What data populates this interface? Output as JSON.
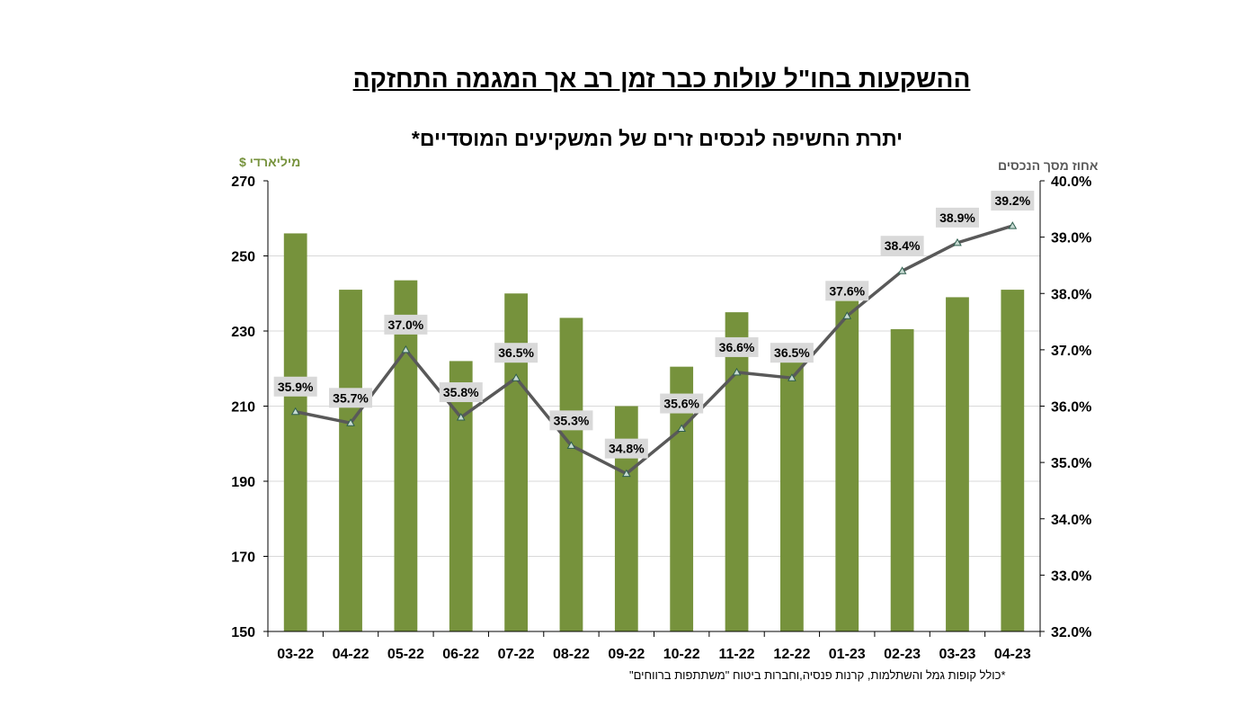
{
  "header": {
    "title": "ההשקעות בחו\"ל עולות כבר זמן רב אך המגמה התחזקה"
  },
  "chart_data": {
    "type": "bar+line",
    "title": "יתרת החשיפה לנכסים זרים של המשקיעים המוסדיים*",
    "ylabel": "מיליארדי $",
    "y2label": "אחוז מסך  הנכסים",
    "categories": [
      "03-22",
      "04-22",
      "05-22",
      "06-22",
      "07-22",
      "08-22",
      "09-22",
      "10-22",
      "11-22",
      "12-22",
      "01-23",
      "02-23",
      "03-23",
      "04-23"
    ],
    "series": [
      {
        "values": [
          256,
          241,
          243.5,
          222,
          240,
          233.5,
          210,
          220.5,
          235,
          222,
          238,
          230.5,
          239,
          241
        ],
        "axis": "left",
        "kind": "bar",
        "color": "#76923c"
      },
      {
        "values": [
          35.9,
          35.7,
          37.0,
          35.8,
          36.5,
          35.3,
          34.8,
          35.6,
          36.6,
          36.5,
          37.6,
          38.4,
          38.9,
          39.2
        ],
        "axis": "right",
        "kind": "line",
        "color": "#595959",
        "labels": [
          "35.9%",
          "35.7%",
          "37.0%",
          "35.8%",
          "36.5%",
          "35.3%",
          "34.8%",
          "35.6%",
          "36.6%",
          "36.5%",
          "37.6%",
          "38.4%",
          "38.9%",
          "39.2%"
        ]
      }
    ],
    "ylim": [
      150,
      270
    ],
    "yticks": [
      "150",
      "170",
      "190",
      "210",
      "230",
      "250",
      "270"
    ],
    "y2lim": [
      32,
      40
    ],
    "y2ticks": [
      "32.0%",
      "33.0%",
      "34.0%",
      "35.0%",
      "36.0%",
      "37.0%",
      "38.0%",
      "39.0%",
      "40.0%"
    ],
    "grid": true
  },
  "footnote": "*כולל קופות גמל והשתלמות, קרנות פנסיה,וחברות ביטוח \"משתתפות ברווחים\""
}
